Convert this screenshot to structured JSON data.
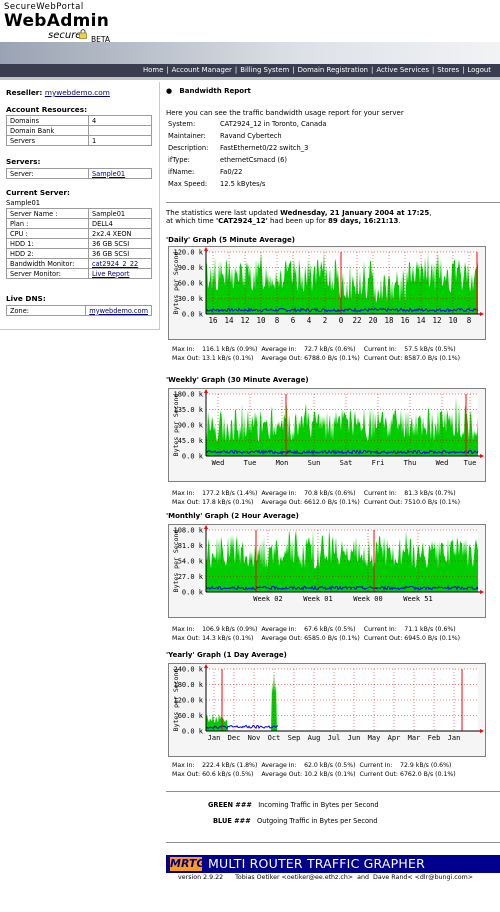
{
  "header": {
    "brand_top": "SecureWebPortal",
    "brand_main": "WebAdmin",
    "secure_label": "secure",
    "beta_label": "BETA"
  },
  "nav": {
    "items": [
      "Home",
      "Account Manager",
      "Billing System",
      "Domain Registration",
      "Active Services",
      "Stores",
      "Logout"
    ]
  },
  "sidebar": {
    "reseller_label": "Reseller:",
    "reseller_link": "mywebdemo.com",
    "account_resources_title": "Account Resources:",
    "account_resources": [
      {
        "label": "Domains",
        "value": "4"
      },
      {
        "label": "Domain Bank",
        "value": ""
      },
      {
        "label": "Servers",
        "value": "1"
      }
    ],
    "servers_title": "Servers:",
    "server_row": {
      "label": "Server:",
      "value": "Sample01"
    },
    "current_server_title": "Current Server:",
    "current_server_name": "Sample01",
    "current_server": [
      {
        "label": "Server Name :",
        "value": "Sample01"
      },
      {
        "label": "Plan :",
        "value": "DELL4"
      },
      {
        "label": "CPU :",
        "value": "2x2.4 XEON"
      },
      {
        "label": "HDD 1:",
        "value": "36 GB SCSI"
      },
      {
        "label": "HDD 2:",
        "value": "36 GB SCSI"
      },
      {
        "label": "Bandwidth Monitor:",
        "value": "cat2924_2_22"
      },
      {
        "label": "Server Monitor:",
        "value": "Live Report"
      }
    ],
    "live_dns_title": "Live DNS:",
    "zone_row": {
      "label": "Zone:",
      "value": "mywebdemo.com"
    }
  },
  "report": {
    "title": "Bandwidth Report",
    "intro": "Here you can see the traffic bandwidth usage report for your server",
    "info": [
      {
        "key": "System:",
        "value": "CAT2924_12 in Toronto, Canada"
      },
      {
        "key": "Maintainer:",
        "value": "Ravand Cybertech"
      },
      {
        "key": "Description:",
        "value": "FastEthernet0/22 switch_3"
      },
      {
        "key": "ifType:",
        "value": "ethernetCsmacd (6)"
      },
      {
        "key": "ifName:",
        "value": "Fa0/22"
      },
      {
        "key": "Max Speed:",
        "value": "12.5 kBytes/s"
      }
    ],
    "stats_prefix": "The statistics were last updated",
    "stats_date": "Wednesday, 21 January 2004 at 17:25",
    "stats_mid": "at which time",
    "stats_device": "'CAT2924_12'",
    "stats_mid2": "had been up for",
    "stats_uptime": "89 days, 16:21:13",
    "y_axis_label": "Bytes per Second",
    "graphs": [
      {
        "title": "'Daily' Graph (5 Minute Average)",
        "y_ticks": [
          "120.0 k",
          "90.0 k",
          "60.0 k",
          "30.0 k",
          "0.0 k"
        ],
        "y_max": 120,
        "x_labels": [
          "16",
          "14",
          "12",
          "10",
          "8",
          "6",
          "4",
          "2",
          "0",
          "22",
          "20",
          "18",
          "16",
          "14",
          "12",
          "10",
          "8"
        ],
        "stats": {
          "max_in": "116.1 kB/s (0.9%)",
          "avg_in": "72.7 kB/s (0.6%)",
          "cur_in": "57.5 kB/s (0.5%)",
          "max_out": "13.1 kB/s (0.1%)",
          "avg_out": "6788.0 B/s (0.1%)",
          "cur_out": "8587.0 B/s (0.1%)"
        }
      },
      {
        "title": "'Weekly' Graph (30 Minute Average)",
        "y_ticks": [
          "180.0 k",
          "135.0 k",
          "90.0 k",
          "45.0 k",
          "0.0 k"
        ],
        "y_max": 180,
        "x_labels": [
          "Wed",
          "Tue",
          "Mon",
          "Sun",
          "Sat",
          "Fri",
          "Thu",
          "Wed",
          "Tue"
        ],
        "stats": {
          "max_in": "177.2 kB/s (1.4%)",
          "avg_in": "70.8 kB/s (0.6%)",
          "cur_in": "81.3 kB/s (0.7%)",
          "max_out": "17.8 kB/s (0.1%)",
          "avg_out": "6612.0 B/s (0.1%)",
          "cur_out": "7510.0 B/s (0.1%)"
        }
      },
      {
        "title": "'Monthly' Graph (2 Hour Average)",
        "y_ticks": [
          "108.0 k",
          "81.0 k",
          "54.0 k",
          "27.0 k",
          "0.0 k"
        ],
        "y_max": 108,
        "x_labels": [
          "Week 02",
          "Week 01",
          "Week 00",
          "Week 51"
        ],
        "stats": {
          "max_in": "106.9 kB/s (0.9%)",
          "avg_in": "67.6 kB/s (0.5%)",
          "cur_in": "71.1 kB/s (0.6%)",
          "max_out": "14.3 kB/s (0.1%)",
          "avg_out": "6585.0 B/s (0.1%)",
          "cur_out": "6945.0 B/s (0.1%)"
        }
      },
      {
        "title": "'Yearly' Graph (1 Day Average)",
        "y_ticks": [
          "240.0 k",
          "180.0 k",
          "120.0 k",
          "60.0 k",
          "0.0 k"
        ],
        "y_max": 240,
        "x_labels": [
          "Jan",
          "Dec",
          "Nov",
          "Oct",
          "Sep",
          "Aug",
          "Jul",
          "Jun",
          "May",
          "Apr",
          "Mar",
          "Feb",
          "Jan"
        ],
        "stats": {
          "max_in": "222.4 kB/s (1.8%)",
          "avg_in": "62.0 kB/s (0.5%)",
          "cur_in": "72.9 kB/s (0.6%)",
          "max_out": "60.6 kB/s (0.5%)",
          "avg_out": "10.2 kB/s (0.1%)",
          "cur_out": "6762.0 B/s (0.1%)"
        }
      }
    ],
    "stat_labels": {
      "max_in": "Max In:",
      "avg_in": "Average In:",
      "cur_in": "Current In:",
      "max_out": "Max Out:",
      "avg_out": "Average Out:",
      "cur_out": "Current Out:"
    },
    "legend": {
      "green_key": "GREEN ###",
      "green_desc": "Incoming Traffic in Bytes per Second",
      "blue_key": "BLUE ###",
      "blue_desc": "Outgoing Traffic in Bytes per Second"
    },
    "footer": {
      "badge": "MRTG",
      "title": "MULTI ROUTER TRAFFIC GRAPHER",
      "version": "version 2.9.22",
      "author1": "Tobias Oetiker <oetiker@ee.ethz.ch>",
      "and": "and",
      "author2": "Dave Rand< <dlr@bungi.com>"
    }
  },
  "colors": {
    "in_traffic": "#00cc00",
    "out_traffic": "#0000ff",
    "max_marker": "#ff0000",
    "nav_bg": "#3a3d4f"
  }
}
